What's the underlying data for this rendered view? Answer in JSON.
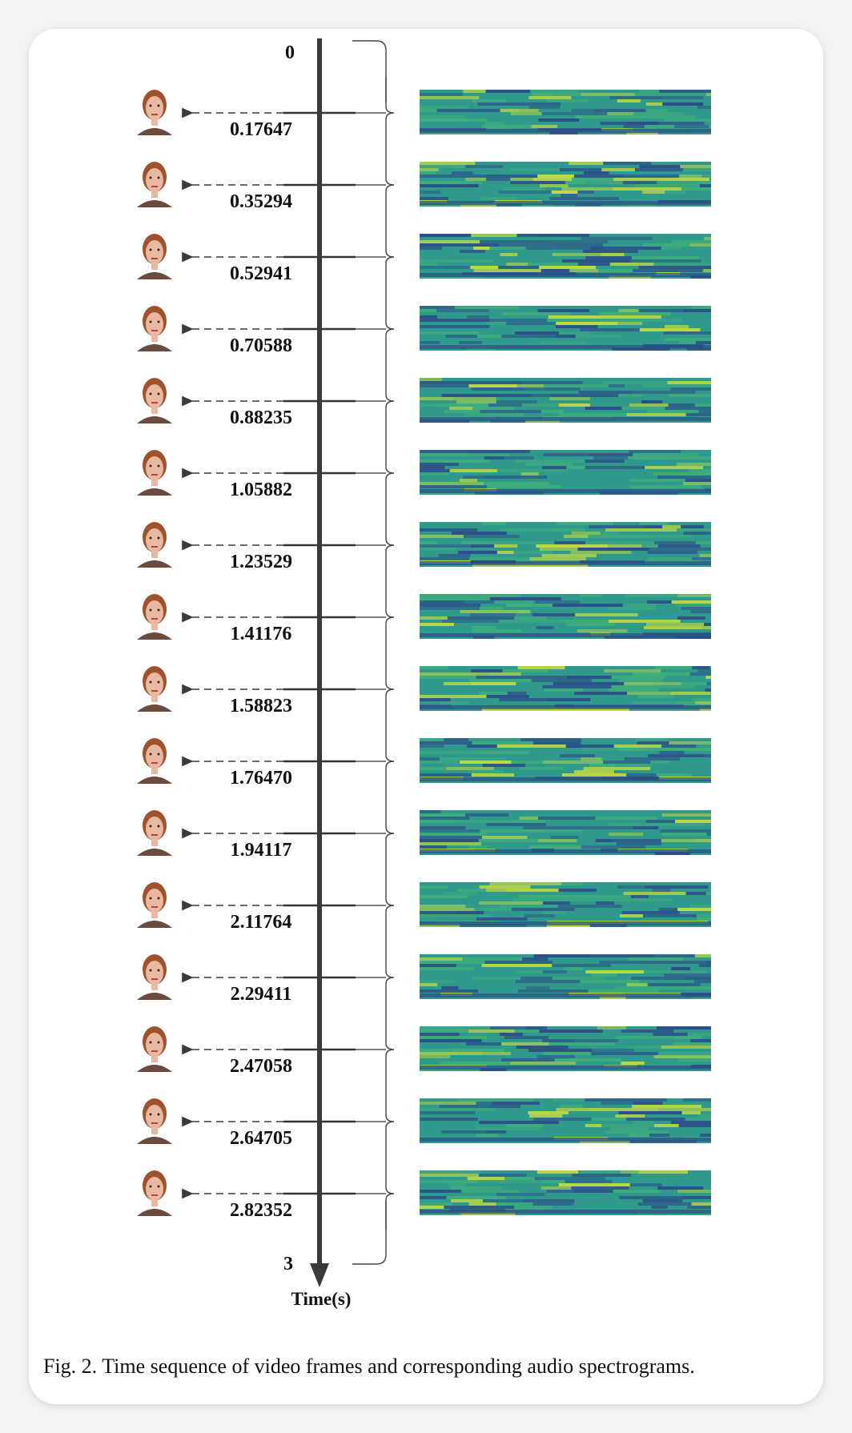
{
  "figure": {
    "axis_start_label": "0",
    "axis_end_label": "3",
    "axis_title": "Time(s)",
    "ticks": [
      "0.17647",
      "0.35294",
      "0.52941",
      "0.70588",
      "0.88235",
      "1.05882",
      "1.23529",
      "1.41176",
      "1.58823",
      "1.76470",
      "1.94117",
      "2.11764",
      "2.29411",
      "2.47058",
      "2.64705",
      "2.82352"
    ],
    "colors": {
      "axis": "#3a3a3a",
      "spectrogram_base": "#2f9a8c",
      "spectrogram_dark": "#2c4a88",
      "spectrogram_bright": "#c8dc3c",
      "skin": "#e8b8a0",
      "hair": "#a0522d"
    }
  },
  "caption": "Fig. 2.  Time sequence of video frames and corresponding audio spectrograms."
}
